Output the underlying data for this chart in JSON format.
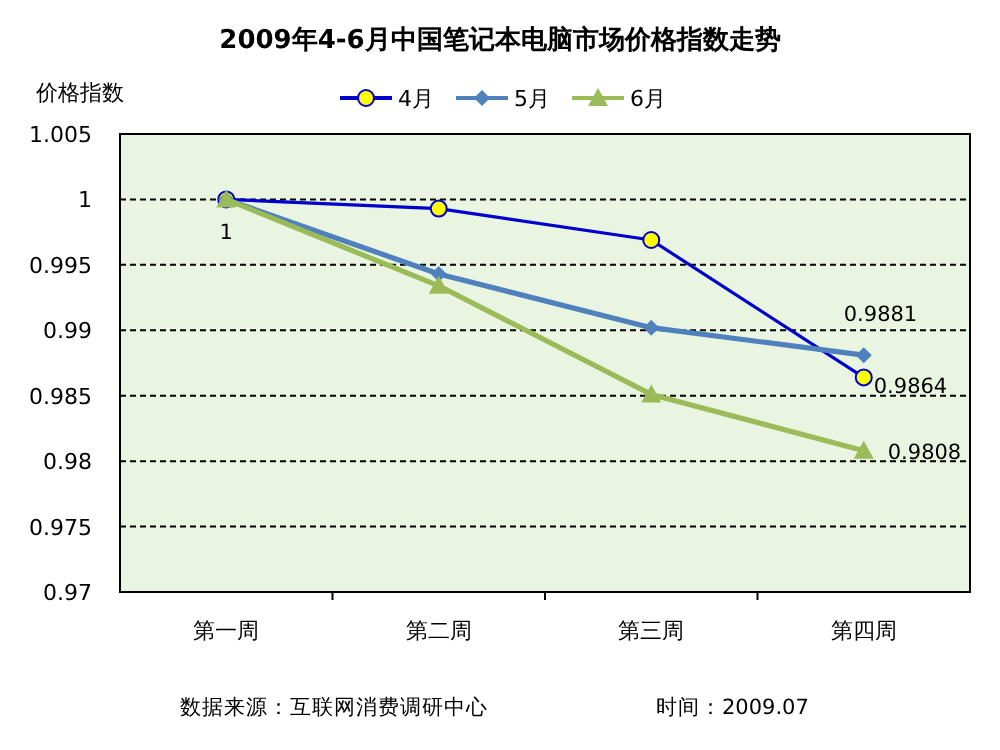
{
  "chart_data": {
    "type": "line",
    "title": "2009年4-6月中国笔记本电脑市场价格指数走势",
    "ylabel": "价格指数",
    "categories": [
      "第一周",
      "第二周",
      "第三周",
      "第四周"
    ],
    "series": [
      {
        "name": "4月",
        "color": "#0000cc",
        "marker": "circle",
        "values": [
          1,
          0.9993,
          0.9969,
          0.9864
        ],
        "value_labels": [
          null,
          null,
          null,
          "0.9864"
        ]
      },
      {
        "name": "5月",
        "color": "#4f81bd",
        "marker": "diamond",
        "values": [
          1,
          0.9943,
          0.9902,
          0.9881
        ],
        "value_labels": [
          null,
          null,
          null,
          "0.9881"
        ]
      },
      {
        "name": "6月",
        "color": "#9bbb59",
        "marker": "triangle",
        "values": [
          1,
          0.9934,
          0.9851,
          0.9808
        ],
        "value_labels": [
          "1",
          null,
          null,
          "0.9808"
        ]
      }
    ],
    "ylim": [
      0.97,
      1.005
    ],
    "yticks": [
      0.97,
      0.975,
      0.98,
      0.985,
      0.99,
      0.995,
      1,
      1.005
    ],
    "grid": "y",
    "legend": "top",
    "annotations": [
      "数据来源：互联网消费调研中心",
      "时间：2009.07"
    ]
  }
}
